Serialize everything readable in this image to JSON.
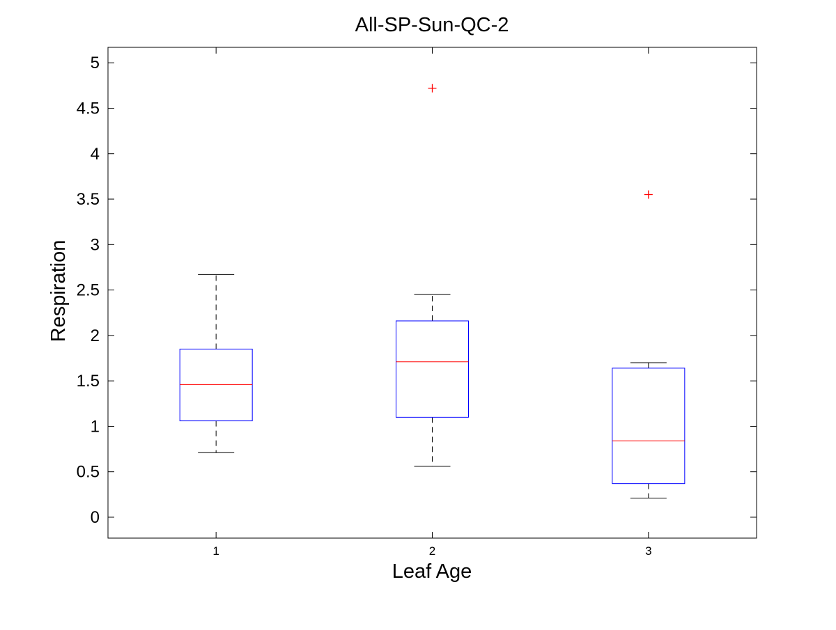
{
  "chart_data": {
    "type": "box",
    "title": "All-SP-Sun-QC-2",
    "xlabel": "Leaf Age",
    "ylabel": "Respiration",
    "categories": [
      "1",
      "2",
      "3"
    ],
    "ylim": [
      -0.23,
      5.17
    ],
    "xlim": [
      0.5,
      3.5
    ],
    "yticks": [
      0,
      0.5,
      1,
      1.5,
      2,
      2.5,
      3,
      3.5,
      4,
      4.5,
      5
    ],
    "ytick_labels": [
      "0",
      "0.5",
      "1",
      "1.5",
      "2",
      "2.5",
      "3",
      "3.5",
      "4",
      "4.5",
      "5"
    ],
    "grid": false,
    "boxes": [
      {
        "category": "1",
        "whisker_low": 0.71,
        "q1": 1.06,
        "median": 1.46,
        "q3": 1.85,
        "whisker_high": 2.67,
        "outliers": []
      },
      {
        "category": "2",
        "whisker_low": 0.56,
        "q1": 1.1,
        "median": 1.71,
        "q3": 2.16,
        "whisker_high": 2.45,
        "outliers": [
          4.72
        ]
      },
      {
        "category": "3",
        "whisker_low": 0.21,
        "q1": 0.37,
        "median": 0.84,
        "q3": 1.64,
        "whisker_high": 1.7,
        "outliers": [
          3.55
        ]
      }
    ],
    "colors": {
      "box": "#0000ff",
      "median": "#ff0000",
      "whisker": "#000000",
      "outlier": "#ff0000",
      "axes": "#000000"
    }
  }
}
